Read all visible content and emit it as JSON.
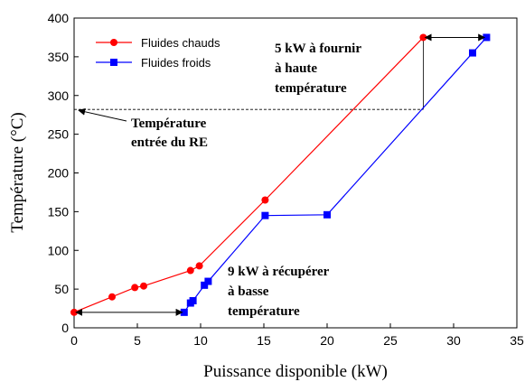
{
  "chart_data": {
    "type": "line",
    "xlabel": "Puissance disponible (kW)",
    "ylabel": "Température (°C)",
    "xlim": [
      0,
      35
    ],
    "ylim": [
      0,
      400
    ],
    "xticks": [
      0,
      5,
      10,
      15,
      20,
      25,
      30,
      35
    ],
    "yticks": [
      0,
      50,
      100,
      150,
      200,
      250,
      300,
      350,
      400
    ],
    "grid": false,
    "legend_position": "top-left",
    "series": [
      {
        "name": "Fluides chauds",
        "color": "#ff0000",
        "marker": "circle",
        "x": [
          0,
          3.0,
          4.8,
          5.5,
          9.2,
          9.9,
          15.1,
          27.6
        ],
        "y": [
          20,
          40,
          52,
          54,
          74,
          80,
          165,
          375
        ]
      },
      {
        "name": "Fluides froids",
        "color": "#0000ff",
        "marker": "square",
        "x": [
          8.7,
          9.2,
          9.4,
          10.3,
          10.6,
          15.1,
          20.0,
          31.5,
          32.6
        ],
        "y": [
          20,
          32,
          35,
          55,
          60,
          145,
          146,
          355,
          375
        ]
      }
    ],
    "annotations": [
      {
        "id": "hot",
        "lines": [
          "5 kW à fournir",
          "à haute",
          "température"
        ]
      },
      {
        "id": "cold",
        "lines": [
          "9 kW à récupérer",
          "à basse",
          "température"
        ]
      },
      {
        "id": "inlet",
        "lines": [
          "Température",
          "entrée du RE"
        ]
      }
    ],
    "reference": {
      "inlet_temperature": 282,
      "inlet_x": 27.6
    },
    "arrows": [
      {
        "id": "hot-gap",
        "x0": 27.6,
        "x1": 32.6,
        "y": 375
      },
      {
        "id": "cold-gap",
        "x0": 0,
        "x1": 8.7,
        "y": 20
      }
    ]
  }
}
